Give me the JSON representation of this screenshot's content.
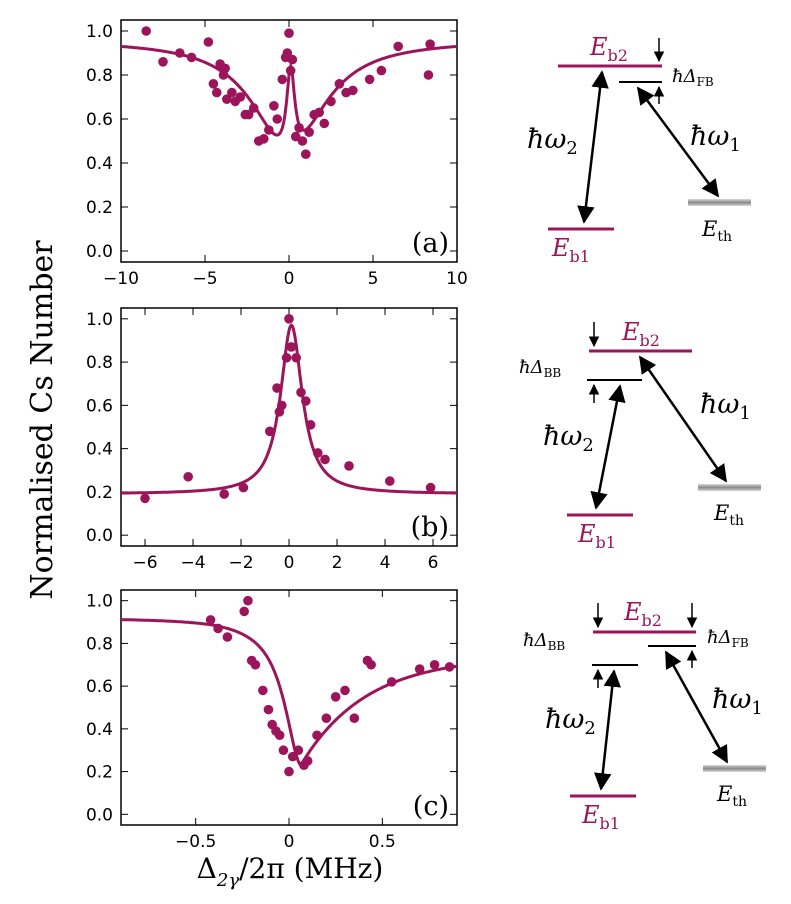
{
  "figure": {
    "ylabel": "Normalised Cs Number",
    "xlabel": "Δ2γ/2π (MHz)",
    "xlabel_main": "Δ",
    "xlabel_sub": "2γ",
    "xlabel_rest": "/2π (MHz)"
  },
  "colors": {
    "accent": "#9c1459",
    "axis": "#000000",
    "threshold": "#aaaaaa"
  },
  "chart_data": [
    {
      "panel": "(a)",
      "type": "scatter",
      "xlim": [
        -10,
        10
      ],
      "ylim": [
        -0.05,
        1.05
      ],
      "xticks": [
        -10,
        -5,
        0,
        5,
        10
      ],
      "yticks": [
        0.0,
        0.2,
        0.4,
        0.6,
        0.8,
        1.0
      ],
      "x": [
        -8.5,
        -7.5,
        -6.5,
        -5.8,
        -4.8,
        -4.5,
        -4.3,
        -4.1,
        -3.9,
        -3.8,
        -3.7,
        -3.4,
        -3.2,
        -2.9,
        -2.6,
        -2.4,
        -2.1,
        -1.8,
        -1.5,
        -1.2,
        -0.9,
        -0.7,
        -0.4,
        -0.2,
        -0.1,
        0.0,
        0.1,
        0.2,
        0.4,
        0.6,
        0.8,
        1.0,
        1.2,
        1.5,
        1.8,
        2.1,
        2.5,
        3.0,
        3.4,
        3.8,
        4.8,
        5.5,
        6.5,
        8.3,
        8.4
      ],
      "y": [
        1.0,
        0.86,
        0.9,
        0.88,
        0.95,
        0.76,
        0.72,
        0.85,
        0.8,
        0.83,
        0.69,
        0.72,
        0.68,
        0.7,
        0.62,
        0.62,
        0.65,
        0.5,
        0.51,
        0.55,
        0.66,
        0.6,
        0.78,
        0.88,
        0.9,
        0.99,
        0.82,
        0.87,
        0.52,
        0.56,
        0.5,
        0.44,
        0.54,
        0.62,
        0.63,
        0.58,
        0.68,
        0.76,
        0.72,
        0.73,
        0.78,
        0.82,
        0.93,
        0.8,
        0.94
      ],
      "fit_type": "dip-with-peak"
    },
    {
      "panel": "(b)",
      "type": "scatter",
      "xlim": [
        -7,
        7
      ],
      "ylim": [
        -0.05,
        1.05
      ],
      "xticks": [
        -6,
        -4,
        -2,
        0,
        2,
        4,
        6
      ],
      "yticks": [
        0.0,
        0.2,
        0.4,
        0.6,
        0.8,
        1.0
      ],
      "x": [
        -6.0,
        -4.2,
        -2.7,
        -1.9,
        -0.8,
        -0.5,
        -0.4,
        -0.3,
        -0.1,
        0.0,
        0.1,
        0.3,
        0.5,
        0.7,
        0.9,
        1.2,
        1.5,
        2.5,
        4.2,
        5.9
      ],
      "y": [
        0.17,
        0.27,
        0.19,
        0.22,
        0.48,
        0.68,
        0.57,
        0.6,
        0.82,
        1.0,
        0.87,
        0.82,
        0.66,
        0.62,
        0.51,
        0.38,
        0.35,
        0.32,
        0.25,
        0.22
      ],
      "fit_type": "lorentz-peak"
    },
    {
      "panel": "(c)",
      "type": "scatter",
      "xlim": [
        -0.9,
        0.9
      ],
      "ylim": [
        -0.05,
        1.05
      ],
      "xticks": [
        -0.5,
        0.0,
        0.5
      ],
      "yticks": [
        0.0,
        0.2,
        0.4,
        0.6,
        0.8,
        1.0
      ],
      "x": [
        -0.42,
        -0.38,
        -0.33,
        -0.24,
        -0.22,
        -0.2,
        -0.18,
        -0.14,
        -0.11,
        -0.09,
        -0.07,
        -0.05,
        -0.03,
        0.0,
        0.02,
        0.05,
        0.08,
        0.1,
        0.15,
        0.2,
        0.25,
        0.3,
        0.35,
        0.42,
        0.44,
        0.55,
        0.7,
        0.78,
        0.86
      ],
      "y": [
        0.91,
        0.87,
        0.83,
        0.95,
        1.0,
        0.72,
        0.7,
        0.58,
        0.49,
        0.42,
        0.39,
        0.37,
        0.3,
        0.2,
        0.27,
        0.3,
        0.23,
        0.25,
        0.37,
        0.45,
        0.55,
        0.58,
        0.45,
        0.72,
        0.7,
        0.62,
        0.68,
        0.7,
        0.69
      ],
      "fit_type": "asymmetric-dip"
    }
  ],
  "diagrams": [
    {
      "id": "a",
      "labels": {
        "Eb2": "E",
        "Eb2_sub": "b2",
        "Eb1": "E",
        "Eb1_sub": "b1",
        "Eth": "E",
        "Eth_sub": "th",
        "w2": "ħω",
        "w2_sub": "2",
        "w1": "ħω",
        "w1_sub": "1",
        "dFB": "ħΔ",
        "dFB_sub": "FB"
      }
    },
    {
      "id": "b",
      "labels": {
        "Eb2": "E",
        "Eb2_sub": "b2",
        "Eb1": "E",
        "Eb1_sub": "b1",
        "Eth": "E",
        "Eth_sub": "th",
        "w2": "ħω",
        "w2_sub": "2",
        "w1": "ħω",
        "w1_sub": "1",
        "dBB": "ħΔ",
        "dBB_sub": "BB"
      }
    },
    {
      "id": "c",
      "labels": {
        "Eb2": "E",
        "Eb2_sub": "b2",
        "Eb1": "E",
        "Eb1_sub": "b1",
        "Eth": "E",
        "Eth_sub": "th",
        "w2": "ħω",
        "w2_sub": "2",
        "w1": "ħω",
        "w1_sub": "1",
        "dBB": "ħΔ",
        "dBB_sub": "BB",
        "dFB": "ħΔ",
        "dFB_sub": "FB"
      }
    }
  ]
}
